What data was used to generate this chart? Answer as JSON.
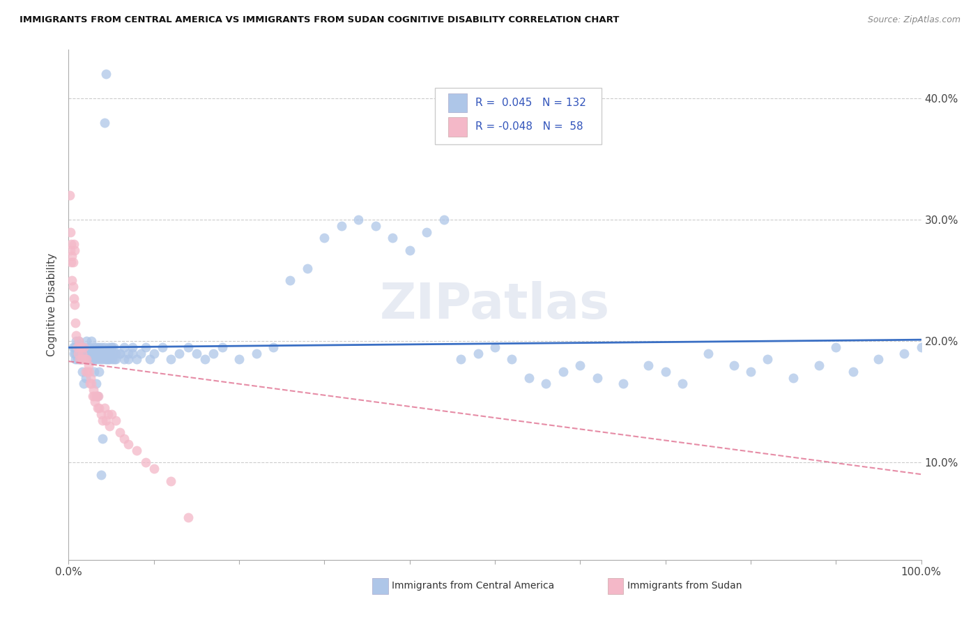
{
  "title": "IMMIGRANTS FROM CENTRAL AMERICA VS IMMIGRANTS FROM SUDAN COGNITIVE DISABILITY CORRELATION CHART",
  "source": "Source: ZipAtlas.com",
  "ylabel": "Cognitive Disability",
  "legend_label1": "Immigrants from Central America",
  "legend_label2": "Immigrants from Sudan",
  "r1": 0.045,
  "n1": 132,
  "r2": -0.048,
  "n2": 58,
  "yticks": [
    0.1,
    0.2,
    0.3,
    0.4
  ],
  "ytick_labels": [
    "10.0%",
    "20.0%",
    "30.0%",
    "40.0%"
  ],
  "xlim": [
    0.0,
    1.0
  ],
  "ylim": [
    0.02,
    0.44
  ],
  "color1": "#aec6e8",
  "color2": "#f4b8c8",
  "line_color1": "#3a6fc4",
  "line_color2": "#e07090",
  "watermark": "ZIPatlas",
  "background_color": "#ffffff",
  "ca_x": [
    0.005,
    0.007,
    0.008,
    0.009,
    0.01,
    0.011,
    0.012,
    0.013,
    0.014,
    0.015,
    0.016,
    0.017,
    0.018,
    0.019,
    0.02,
    0.021,
    0.022,
    0.023,
    0.024,
    0.025,
    0.026,
    0.027,
    0.028,
    0.029,
    0.03,
    0.031,
    0.032,
    0.033,
    0.034,
    0.035,
    0.036,
    0.037,
    0.038,
    0.039,
    0.04,
    0.041,
    0.042,
    0.043,
    0.044,
    0.045,
    0.046,
    0.047,
    0.048,
    0.049,
    0.05,
    0.051,
    0.052,
    0.053,
    0.054,
    0.055,
    0.06,
    0.065,
    0.07,
    0.075,
    0.08,
    0.085,
    0.09,
    0.095,
    0.1,
    0.11,
    0.12,
    0.13,
    0.14,
    0.15,
    0.16,
    0.17,
    0.18,
    0.2,
    0.22,
    0.24,
    0.26,
    0.28,
    0.3,
    0.32,
    0.34,
    0.36,
    0.38,
    0.4,
    0.42,
    0.44,
    0.46,
    0.48,
    0.5,
    0.52,
    0.54,
    0.56,
    0.58,
    0.6,
    0.62,
    0.65,
    0.68,
    0.7,
    0.72,
    0.75,
    0.78,
    0.8,
    0.82,
    0.85,
    0.88,
    0.9,
    0.92,
    0.95,
    0.98,
    1.0,
    0.006,
    0.008,
    0.01,
    0.012,
    0.014,
    0.016,
    0.018,
    0.02,
    0.022,
    0.024,
    0.026,
    0.028,
    0.03,
    0.032,
    0.034,
    0.036,
    0.038,
    0.04,
    0.042,
    0.044,
    0.046,
    0.048,
    0.05,
    0.055,
    0.06,
    0.065,
    0.07,
    0.075
  ],
  "ca_y": [
    0.195,
    0.195,
    0.19,
    0.2,
    0.185,
    0.19,
    0.2,
    0.185,
    0.19,
    0.195,
    0.185,
    0.19,
    0.195,
    0.185,
    0.19,
    0.2,
    0.185,
    0.19,
    0.195,
    0.185,
    0.19,
    0.2,
    0.185,
    0.19,
    0.195,
    0.185,
    0.19,
    0.195,
    0.185,
    0.19,
    0.195,
    0.185,
    0.19,
    0.195,
    0.185,
    0.19,
    0.195,
    0.185,
    0.19,
    0.185,
    0.19,
    0.195,
    0.185,
    0.19,
    0.195,
    0.185,
    0.19,
    0.195,
    0.185,
    0.19,
    0.19,
    0.185,
    0.19,
    0.195,
    0.185,
    0.19,
    0.195,
    0.185,
    0.19,
    0.195,
    0.185,
    0.19,
    0.195,
    0.19,
    0.185,
    0.19,
    0.195,
    0.185,
    0.19,
    0.195,
    0.25,
    0.26,
    0.285,
    0.295,
    0.3,
    0.295,
    0.285,
    0.275,
    0.29,
    0.3,
    0.185,
    0.19,
    0.195,
    0.185,
    0.17,
    0.165,
    0.175,
    0.18,
    0.17,
    0.165,
    0.18,
    0.175,
    0.165,
    0.19,
    0.18,
    0.175,
    0.185,
    0.17,
    0.18,
    0.195,
    0.175,
    0.185,
    0.19,
    0.195,
    0.19,
    0.185,
    0.19,
    0.195,
    0.185,
    0.175,
    0.165,
    0.17,
    0.19,
    0.185,
    0.19,
    0.185,
    0.175,
    0.165,
    0.155,
    0.175,
    0.09,
    0.12,
    0.38,
    0.42,
    0.185,
    0.19,
    0.195,
    0.185,
    0.19,
    0.195,
    0.185,
    0.19
  ],
  "sd_x": [
    0.001,
    0.002,
    0.003,
    0.004,
    0.005,
    0.006,
    0.007,
    0.008,
    0.009,
    0.01,
    0.011,
    0.012,
    0.013,
    0.014,
    0.015,
    0.016,
    0.017,
    0.018,
    0.019,
    0.02,
    0.021,
    0.022,
    0.023,
    0.024,
    0.025,
    0.026,
    0.027,
    0.028,
    0.029,
    0.03,
    0.031,
    0.032,
    0.033,
    0.034,
    0.035,
    0.036,
    0.038,
    0.04,
    0.042,
    0.044,
    0.046,
    0.048,
    0.05,
    0.055,
    0.06,
    0.065,
    0.07,
    0.08,
    0.09,
    0.1,
    0.12,
    0.14,
    0.002,
    0.003,
    0.004,
    0.005,
    0.006,
    0.007
  ],
  "sd_y": [
    0.32,
    0.275,
    0.265,
    0.25,
    0.245,
    0.235,
    0.23,
    0.215,
    0.205,
    0.195,
    0.19,
    0.2,
    0.185,
    0.195,
    0.185,
    0.19,
    0.185,
    0.195,
    0.185,
    0.175,
    0.185,
    0.175,
    0.18,
    0.175,
    0.165,
    0.17,
    0.165,
    0.155,
    0.16,
    0.155,
    0.15,
    0.155,
    0.155,
    0.145,
    0.155,
    0.145,
    0.14,
    0.135,
    0.145,
    0.135,
    0.14,
    0.13,
    0.14,
    0.135,
    0.125,
    0.12,
    0.115,
    0.11,
    0.1,
    0.095,
    0.085,
    0.055,
    0.29,
    0.28,
    0.27,
    0.265,
    0.28,
    0.275
  ]
}
